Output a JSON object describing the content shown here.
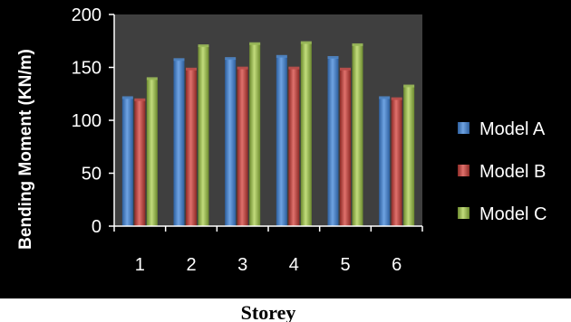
{
  "chart_data": {
    "type": "bar",
    "title": "",
    "xlabel": "Storey",
    "ylabel": "Bending Moment (KN/m)",
    "ylim": [
      0,
      200
    ],
    "yticks": [
      0,
      50,
      100,
      150,
      200
    ],
    "categories": [
      "1",
      "2",
      "3",
      "4",
      "5",
      "6"
    ],
    "series": [
      {
        "name": "Model A",
        "color": "#4f86c6",
        "values": [
          121,
          157,
          158,
          160,
          159,
          121
        ]
      },
      {
        "name": "Model B",
        "color": "#c0504d",
        "values": [
          119,
          148,
          149,
          149,
          148,
          120
        ]
      },
      {
        "name": "Model C",
        "color": "#9bbb59",
        "values": [
          139,
          170,
          172,
          173,
          171,
          132
        ]
      }
    ],
    "grid": false,
    "legend": "right",
    "plot_background": "#3f3f3f",
    "background": "#000000",
    "text_color": "#ffffff"
  }
}
